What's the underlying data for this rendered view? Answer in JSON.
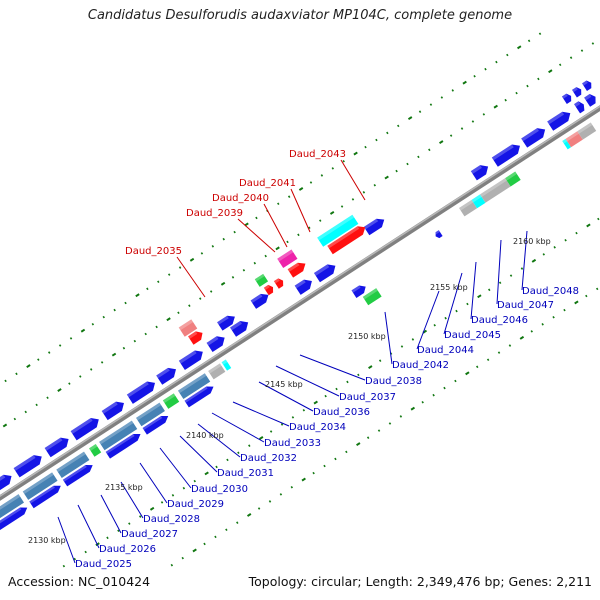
{
  "title": "Candidatus Desulforudis audaxviator MP104C, complete genome",
  "footer": {
    "accession": "Accession: NC_010424",
    "summary": "Topology: circular; Length: 2,349,476 bp; Genes: 2,211"
  },
  "ticks": [
    "2130 kbp",
    "2135 kbp",
    "2140 kbp",
    "2145 kbp",
    "2150 kbp",
    "2155 kbp",
    "2160 kbp"
  ],
  "gene_labels_top": [
    "Daud_2035",
    "Daud_2039",
    "Daud_2040",
    "Daud_2041",
    "Daud_2043"
  ],
  "gene_labels_bottom": [
    "Daud_2025",
    "Daud_2026",
    "Daud_2027",
    "Daud_2028",
    "Daud_2029",
    "Daud_2030",
    "Daud_2031",
    "Daud_2032",
    "Daud_2033",
    "Daud_2034",
    "Daud_2036",
    "Daud_2037",
    "Daud_2038",
    "Daud_2042",
    "Daud_2044",
    "Daud_2045",
    "Daud_2046",
    "Daud_2047",
    "Daud_2048"
  ],
  "colors": {
    "forward": "#1414e6",
    "forward_rna": "#ff1010",
    "reverse_blue": "#4682b4",
    "grey": "#b0b0b0",
    "green": "#22cc44",
    "cyan": "#00ffff",
    "magenta": "#ee22aa",
    "pink": "#f08080",
    "label_top": "#cc0000",
    "label_bottom": "#0000bb",
    "backbone": "#808080",
    "gc_tick": "#117711"
  }
}
